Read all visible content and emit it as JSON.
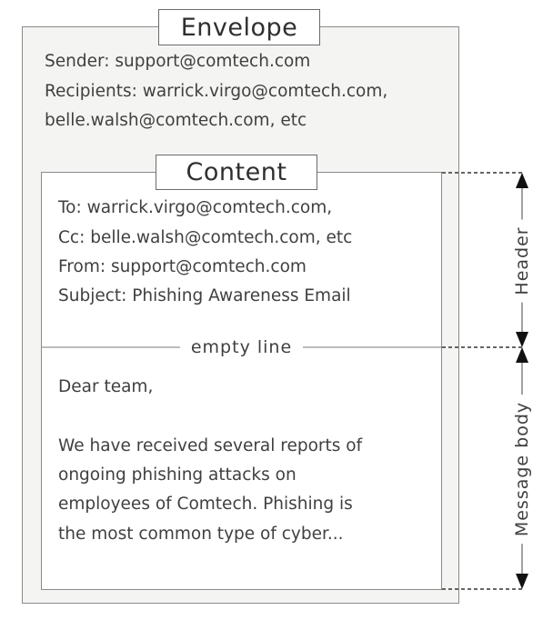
{
  "envelope": {
    "title": "Envelope",
    "sender": "Sender: support@comtech.com",
    "recipients_line1": "Recipients: warrick.virgo@comtech.com,",
    "recipients_line2": "belle.walsh@comtech.com, etc"
  },
  "content": {
    "title": "Content",
    "header_lines": [
      "To: warrick.virgo@comtech.com,",
      "Cc: belle.walsh@comtech.com, etc",
      "From: support@comtech.com",
      "Subject: Phishing Awareness Email"
    ],
    "separator": "empty line",
    "body_lines": [
      "Dear team,",
      "We have received several reports of",
      "ongoing phishing attacks on",
      "employees of Comtech. Phishing is",
      "the most common type of cyber..."
    ]
  },
  "annotations": {
    "header": "Header",
    "message_body": "Message body"
  },
  "colors": {
    "envelope_fill": "#f4f5f3",
    "border": "#8a8a8a",
    "text": "#404040"
  }
}
